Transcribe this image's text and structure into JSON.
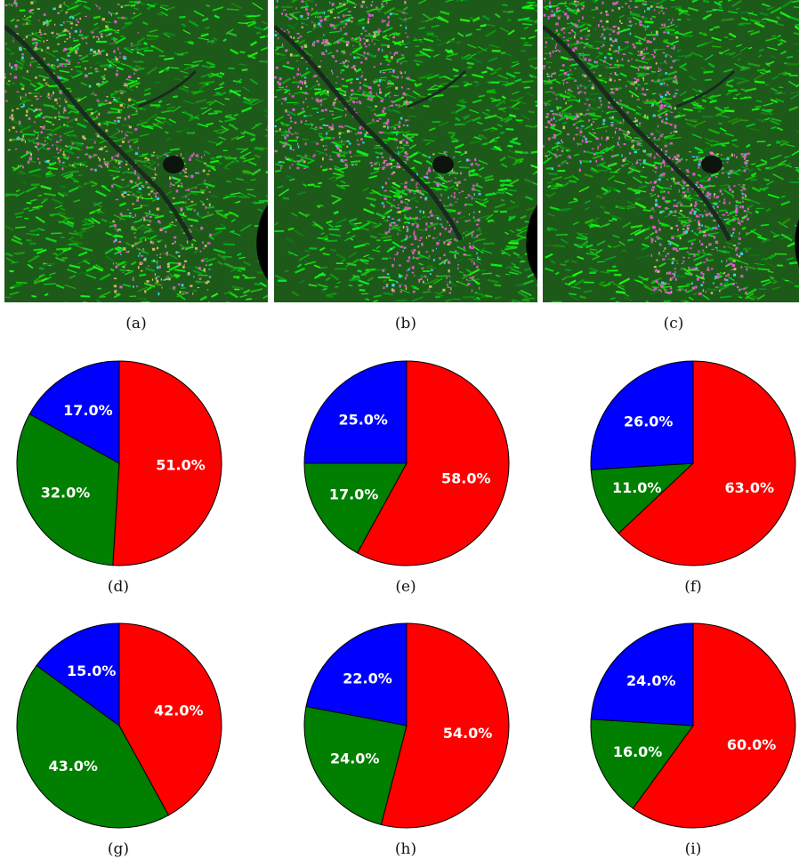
{
  "panels": {
    "a": "(a)",
    "b": "(b)",
    "c": "(c)",
    "d": "(d)",
    "e": "(e)",
    "f": "(f)",
    "g": "(g)",
    "h": "(h)",
    "i": "(i)"
  },
  "colors": {
    "red_class": "#ff0000",
    "green_class": "#007f00",
    "blue_class": "#0000ff",
    "vegetation": "#2fae2a",
    "urban": "#d45fc0",
    "river": "#1a2a1f"
  },
  "chart_data": [
    {
      "type": "pie",
      "panel": "(d)",
      "values": [
        51.0,
        32.0,
        17.0
      ],
      "labels": [
        "51.0%",
        "32.0%",
        "17.0%"
      ],
      "colors": [
        "#ff0000",
        "#007f00",
        "#0000ff"
      ],
      "start_angle": 90,
      "direction": "clockwise"
    },
    {
      "type": "pie",
      "panel": "(e)",
      "values": [
        58.0,
        17.0,
        25.0
      ],
      "labels": [
        "58.0%",
        "17.0%",
        "25.0%"
      ],
      "colors": [
        "#ff0000",
        "#007f00",
        "#0000ff"
      ],
      "start_angle": 90,
      "direction": "clockwise"
    },
    {
      "type": "pie",
      "panel": "(f)",
      "values": [
        63.0,
        11.0,
        26.0
      ],
      "labels": [
        "63.0%",
        "11.0%",
        "26.0%"
      ],
      "colors": [
        "#ff0000",
        "#007f00",
        "#0000ff"
      ],
      "start_angle": 90,
      "direction": "clockwise"
    },
    {
      "type": "pie",
      "panel": "(g)",
      "values": [
        42.0,
        43.0,
        15.0
      ],
      "labels": [
        "42.0%",
        "43.0%",
        "15.0%"
      ],
      "colors": [
        "#ff0000",
        "#007f00",
        "#0000ff"
      ],
      "start_angle": 90,
      "direction": "clockwise"
    },
    {
      "type": "pie",
      "panel": "(h)",
      "values": [
        54.0,
        24.0,
        22.0
      ],
      "labels": [
        "54.0%",
        "24.0%",
        "22.0%"
      ],
      "colors": [
        "#ff0000",
        "#007f00",
        "#0000ff"
      ],
      "start_angle": 90,
      "direction": "clockwise"
    },
    {
      "type": "pie",
      "panel": "(i)",
      "values": [
        60.0,
        16.0,
        24.0
      ],
      "labels": [
        "60.0%",
        "16.0%",
        "24.0%"
      ],
      "colors": [
        "#ff0000",
        "#007f00",
        "#0000ff"
      ],
      "start_angle": 90,
      "direction": "clockwise"
    }
  ]
}
